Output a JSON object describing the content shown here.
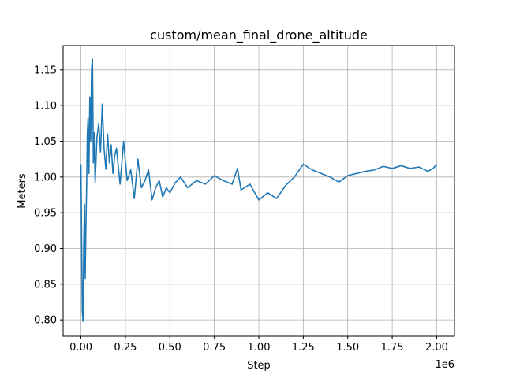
{
  "chart_data": {
    "type": "line",
    "title": "custom/mean_final_drone_altitude",
    "xlabel": "Step",
    "ylabel": "Meters",
    "x_offset_label": "1e6",
    "x_scale_multiplier": 1000000,
    "xlim": [
      -0.1,
      2.1
    ],
    "ylim": [
      0.777,
      1.184
    ],
    "xticks": [
      0.0,
      0.25,
      0.5,
      0.75,
      1.0,
      1.25,
      1.5,
      1.75,
      2.0
    ],
    "xtick_labels": [
      "0.00",
      "0.25",
      "0.50",
      "0.75",
      "1.00",
      "1.25",
      "1.50",
      "1.75",
      "2.00"
    ],
    "yticks": [
      0.8,
      0.85,
      0.9,
      0.95,
      1.0,
      1.05,
      1.1,
      1.15
    ],
    "ytick_labels": [
      "0.80",
      "0.85",
      "0.90",
      "0.95",
      "1.00",
      "1.05",
      "1.10",
      "1.15"
    ],
    "grid": true,
    "colors": {
      "line": "#1f77b4",
      "grid": "#b0b0b0",
      "axes": "#000000"
    },
    "series": [
      {
        "x": [
          0.0,
          0.004,
          0.008,
          0.012,
          0.016,
          0.02,
          0.024,
          0.028,
          0.032,
          0.036,
          0.04,
          0.045,
          0.05,
          0.055,
          0.06,
          0.065,
          0.07,
          0.075,
          0.08,
          0.09,
          0.1,
          0.11,
          0.12,
          0.13,
          0.14,
          0.15,
          0.16,
          0.17,
          0.18,
          0.19,
          0.2,
          0.22,
          0.24,
          0.26,
          0.28,
          0.3,
          0.32,
          0.34,
          0.36,
          0.38,
          0.4,
          0.42,
          0.44,
          0.46,
          0.48,
          0.5,
          0.53,
          0.56,
          0.6,
          0.65,
          0.7,
          0.75,
          0.8,
          0.85,
          0.88,
          0.9,
          0.95,
          1.0,
          1.05,
          1.1,
          1.15,
          1.2,
          1.25,
          1.3,
          1.35,
          1.4,
          1.45,
          1.5,
          1.55,
          1.6,
          1.65,
          1.7,
          1.75,
          1.8,
          1.85,
          1.9,
          1.95,
          1.98,
          2.0
        ],
        "y": [
          1.018,
          0.912,
          0.81,
          0.798,
          0.905,
          0.962,
          0.858,
          0.93,
          0.985,
          1.06,
          1.082,
          1.005,
          1.112,
          1.05,
          1.152,
          1.165,
          1.02,
          1.063,
          0.992,
          1.055,
          1.075,
          1.035,
          1.102,
          1.04,
          1.011,
          1.06,
          1.02,
          1.045,
          1.005,
          1.03,
          1.04,
          0.99,
          1.05,
          0.995,
          1.01,
          0.97,
          1.025,
          0.985,
          0.995,
          1.01,
          0.968,
          0.985,
          0.995,
          0.972,
          0.985,
          0.978,
          0.992,
          1.0,
          0.985,
          0.995,
          0.99,
          1.002,
          0.995,
          0.99,
          1.012,
          0.982,
          0.99,
          0.968,
          0.978,
          0.97,
          0.988,
          1.0,
          1.018,
          1.01,
          1.005,
          1.0,
          0.993,
          1.002,
          1.005,
          1.008,
          1.01,
          1.015,
          1.012,
          1.016,
          1.012,
          1.014,
          1.008,
          1.012,
          1.018
        ]
      }
    ]
  }
}
